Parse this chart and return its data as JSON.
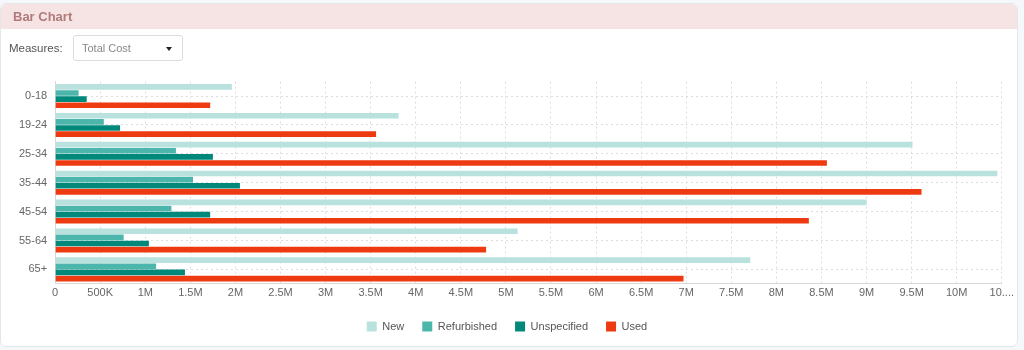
{
  "chart_data": {
    "type": "bar",
    "orientation": "horizontal",
    "title": "Bar Chart",
    "annotations": [
      "Measures:",
      "Total Cost"
    ],
    "categories": [
      "0-18",
      "19-24",
      "25-34",
      "35-44",
      "45-54",
      "55-64",
      "65+"
    ],
    "series": [
      {
        "name": "New",
        "color": "#b9e2de",
        "values": [
          1960000,
          3810000,
          9510000,
          10450000,
          9000000,
          5130000,
          7710000
        ]
      },
      {
        "name": "Refurbished",
        "color": "#4db6ac",
        "values": [
          260000,
          540000,
          1340000,
          1530000,
          1290000,
          760000,
          1120000
        ]
      },
      {
        "name": "Unspecified",
        "color": "#00897b",
        "values": [
          350000,
          720000,
          1750000,
          2050000,
          1720000,
          1040000,
          1440000
        ]
      },
      {
        "name": "Used",
        "color": "#ee3a10",
        "values": [
          1720000,
          3560000,
          8560000,
          9610000,
          8360000,
          4780000,
          6970000
        ]
      }
    ],
    "xlim": [
      0,
      10500000
    ],
    "xticks": [
      0,
      {
        "value": 500000,
        "label": "500K"
      },
      {
        "value": 1000000,
        "label": "1M"
      },
      {
        "value": 1500000,
        "label": "1.5M"
      },
      {
        "value": 2000000,
        "label": "2M"
      },
      {
        "value": 2500000,
        "label": "2.5M"
      },
      {
        "value": 3000000,
        "label": "3M"
      },
      {
        "value": 3500000,
        "label": "3.5M"
      },
      {
        "value": 4000000,
        "label": "4M"
      },
      {
        "value": 4500000,
        "label": "4.5M"
      },
      {
        "value": 5000000,
        "label": "5M"
      },
      {
        "value": 5500000,
        "label": "5.5M"
      },
      {
        "value": 6000000,
        "label": "6M"
      },
      {
        "value": 6500000,
        "label": "6.5M"
      },
      {
        "value": 7000000,
        "label": "7M"
      },
      {
        "value": 7500000,
        "label": "7.5M"
      },
      {
        "value": 8000000,
        "label": "8M"
      },
      {
        "value": 8500000,
        "label": "8.5M"
      },
      {
        "value": 9000000,
        "label": "9M"
      },
      {
        "value": 9500000,
        "label": "9.5M"
      },
      {
        "value": 10000000,
        "label": "10M"
      },
      {
        "value": 10500000,
        "label": "10...."
      }
    ],
    "grid": true,
    "legend": "bottom"
  }
}
